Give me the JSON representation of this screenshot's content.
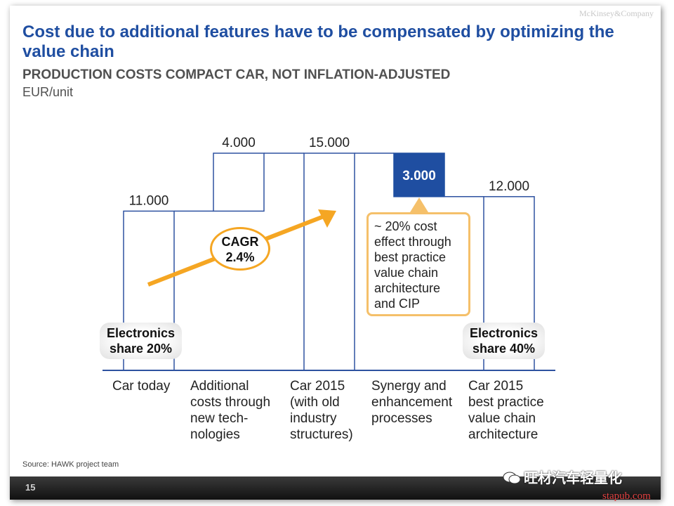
{
  "brand": "McKinsey&Company",
  "title": "Cost due to additional features have to be compensated by optimizing the value chain",
  "subtitle": "PRODUCTION COSTS COMPACT CAR, NOT INFLATION-ADJUSTED",
  "unit": "EUR/unit",
  "chart_data": {
    "type": "bar",
    "subtype": "waterfall",
    "title": "",
    "categories": [
      "Car today",
      "Additional costs through new tech- nologies",
      "Car 2015 (with old industry structures)",
      "Synergy and enhancement processes",
      "Car 2015 best practice value chain architecture"
    ],
    "values": [
      11000,
      4000,
      15000,
      -3000,
      12000
    ],
    "value_labels": [
      "11.000",
      "4.000",
      "15.000",
      "3.000",
      "12.000"
    ],
    "bar_kind": [
      "total",
      "increase",
      "total",
      "decrease",
      "total"
    ],
    "highlight_color": "#1f4ea1",
    "bar_edge_color": "#2e52a0",
    "ylim": [
      0,
      16000
    ]
  },
  "annotations": {
    "cagr_lines": [
      "CAGR",
      "2.4%"
    ],
    "electronics_left_lines": [
      "Electronics",
      "share 20%"
    ],
    "electronics_right_lines": [
      "Electronics",
      "share 40%"
    ],
    "callout_text": "~ 20% cost effect through best practice value chain architecture and CIP",
    "arrow_color": "#f5a623"
  },
  "category_lines": [
    [
      "Car today"
    ],
    [
      "Additional",
      "costs through",
      "new tech-",
      "nologies"
    ],
    [
      "Car 2015",
      "(with old",
      "industry",
      "structures)"
    ],
    [
      "Synergy and",
      "enhancement",
      "processes"
    ],
    [
      "Car 2015",
      "best practice",
      "value chain",
      "architecture"
    ]
  ],
  "source": "Source: HAWK project team",
  "page_number": "15",
  "watermark": "旺材汽车轻量化",
  "site": "stapub.com"
}
